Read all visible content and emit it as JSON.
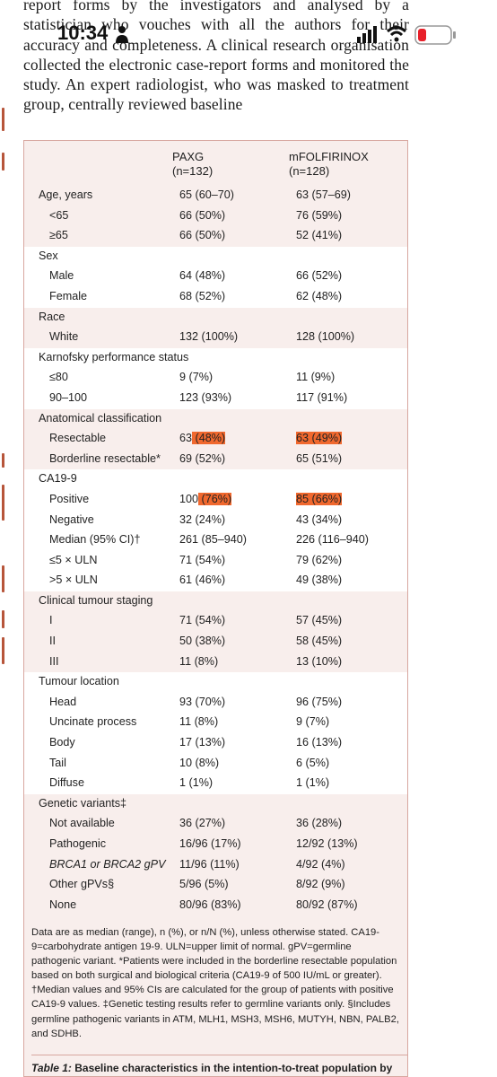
{
  "status_bar": {
    "time": "10:34"
  },
  "body_text": "report forms by the investigators and analysed by a statistician who vouches with all the authors for their accuracy and completeness. A clinical research organisation collected the electronic case-report forms and monitored the study. An expert radiologist, who was masked to treatment group, centrally reviewed baseline",
  "table": {
    "headers": {
      "paxg": "PAXG",
      "paxg_n": "(n=132)",
      "mfolf": "mFOLFIRINOX",
      "mfolf_n": "(n=128)"
    },
    "rows": [
      {
        "label": "Age, years",
        "v1": "65 (60–70)",
        "v2": "63 (57–69)"
      },
      {
        "label": "<65",
        "v1": "66 (50%)",
        "v2": "76 (59%)"
      },
      {
        "label": "≥65",
        "v1": "66 (50%)",
        "v2": "52 (41%)"
      },
      {
        "label": "Sex",
        "v1": "",
        "v2": ""
      },
      {
        "label": "Male",
        "v1": "64 (48%)",
        "v2": "66 (52%)"
      },
      {
        "label": "Female",
        "v1": "68 (52%)",
        "v2": "62 (48%)"
      },
      {
        "label": "Race",
        "v1": "",
        "v2": ""
      },
      {
        "label": "White",
        "v1": "132 (100%)",
        "v2": "128 (100%)"
      },
      {
        "label": "Karnofsky performance status",
        "v1": "",
        "v2": ""
      },
      {
        "label": "≤80",
        "v1": "9 (7%)",
        "v2": "11 (9%)"
      },
      {
        "label": "90–100",
        "v1": "123 (93%)",
        "v2": "117 (91%)"
      },
      {
        "label": "Anatomical classification",
        "v1": "",
        "v2": ""
      },
      {
        "label": "Resectable",
        "v1a": "63",
        "v1b": " (48%)",
        "v2": "63 (49%)"
      },
      {
        "label": "Borderline resectable*",
        "v1": "69 (52%)",
        "v2": "65 (51%)"
      },
      {
        "label": "CA19-9",
        "v1": "",
        "v2": ""
      },
      {
        "label": "Positive",
        "v1a": "100",
        "v1b": " (76%)",
        "v2": "85 (66%)"
      },
      {
        "label": "Negative",
        "v1": "32 (24%)",
        "v2": "43 (34%)"
      },
      {
        "label": "Median (95% CI)†",
        "v1": "261 (85–940)",
        "v2": "226 (116–940)"
      },
      {
        "label": "≤5 × ULN",
        "v1": "71 (54%)",
        "v2": "79 (62%)"
      },
      {
        "label": ">5 × ULN",
        "v1": "61 (46%)",
        "v2": "49 (38%)"
      },
      {
        "label": "Clinical tumour staging",
        "v1": "",
        "v2": ""
      },
      {
        "label": "I",
        "v1": "71 (54%)",
        "v2": "57 (45%)"
      },
      {
        "label": "II",
        "v1": "50 (38%)",
        "v2": "58 (45%)"
      },
      {
        "label": "III",
        "v1": "11 (8%)",
        "v2": "13 (10%)"
      },
      {
        "label": "Tumour location",
        "v1": "",
        "v2": ""
      },
      {
        "label": "Head",
        "v1": "93 (70%)",
        "v2": "96 (75%)"
      },
      {
        "label": "Uncinate process",
        "v1": "11 (8%)",
        "v2": "9 (7%)"
      },
      {
        "label": "Body",
        "v1": "17 (13%)",
        "v2": "16 (13%)"
      },
      {
        "label": "Tail",
        "v1": "10 (8%)",
        "v2": "6 (5%)"
      },
      {
        "label": "Diffuse",
        "v1": "1 (1%)",
        "v2": "1 (1%)"
      },
      {
        "label": "Genetic variants‡",
        "v1": "",
        "v2": ""
      },
      {
        "label": "Not available",
        "v1": "36 (27%)",
        "v2": "36 (28%)"
      },
      {
        "label": "Pathogenic",
        "v1": "16/96 (17%)",
        "v2": "12/92 (13%)"
      },
      {
        "label": "BRCA1 or BRCA2 gPV",
        "v1": "11/96 (11%)",
        "v2": "4/92 (4%)"
      },
      {
        "label": "Other gPVs§",
        "v1": "5/96 (5%)",
        "v2": "8/92 (9%)"
      },
      {
        "label": "None",
        "v1": "80/96 (83%)",
        "v2": "80/92 (87%)"
      }
    ],
    "notes": "Data are as median (range), n (%), or n/N (%), unless otherwise stated. CA19-9=carbohydrate antigen 19-9. ULN=upper limit of normal. gPV=germline pathogenic variant. *Patients were included in the borderline resectable population based on both surgical and biological criteria (CA19-9 of 500 IU/mL or greater). †Median values and 95% CIs are calculated for the group of patients with positive CA19-9 values. ‡Genetic testing results refer to germline variants only. §Includes germline pathogenic variants in ATM, MLH1, MSH3, MSH6, MUTYH, NBN, PALB2, and SDHB.",
    "caption_label": "Table 1:",
    "caption_text": " Baseline characteristics in the intention-to-treat population by"
  }
}
